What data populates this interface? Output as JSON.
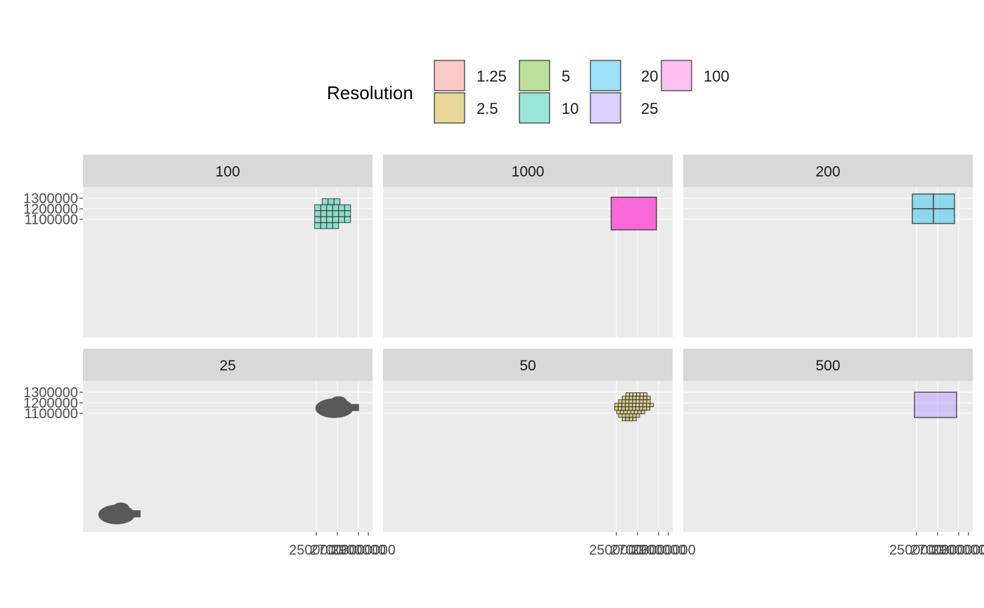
{
  "chart_data": {
    "type": "faceted-tile",
    "legend": {
      "title": "Resolution",
      "position": "top",
      "entries": [
        {
          "label": "1.25",
          "color": "#F8766D"
        },
        {
          "label": "2.5",
          "color": "#C49A00"
        },
        {
          "label": "5",
          "color": "#53B400"
        },
        {
          "label": "10",
          "color": "#00C094"
        },
        {
          "label": "20",
          "color": "#00B6EB"
        },
        {
          "label": "25",
          "color": "#A58AFF"
        },
        {
          "label": "100",
          "color": "#FB61D7"
        }
      ]
    },
    "x_axis": {
      "ticks": [
        2500000,
        2700000,
        2900000,
        3000000
      ],
      "tick_labels": [
        "2500000",
        "2700000",
        "2900000",
        "3000000"
      ]
    },
    "y_axis": {
      "ticks": [
        1100000,
        1200000,
        1300000
      ],
      "tick_labels": [
        "1100000",
        "1200000",
        "1300000"
      ]
    },
    "facets": [
      {
        "label": "100",
        "fill_resolution": "10",
        "extent": {
          "xmin": 2485000,
          "xmax": 2835000,
          "ymin": 1075000,
          "ymax": 1295000
        }
      },
      {
        "label": "1000",
        "fill_resolution": "100",
        "extent": {
          "xmin": 2450000,
          "xmax": 2880000,
          "ymin": 1000000,
          "ymax": 1310000
        }
      },
      {
        "label": "200",
        "fill_resolution": "20",
        "extent": {
          "xmin": 2460000,
          "xmax": 2860000,
          "ymin": 1060000,
          "ymax": 1340000
        }
      },
      {
        "label": "25",
        "fill_resolution": "",
        "extent": {
          "xmin": 2485000,
          "xmax": 2835000,
          "ymin": 1075000,
          "ymax": 1295000
        }
      },
      {
        "label": "50",
        "fill_resolution": "2.5",
        "extent": {
          "xmin": 2485000,
          "xmax": 2835000,
          "ymin": 1075000,
          "ymax": 1295000
        }
      },
      {
        "label": "500",
        "fill_resolution": "25",
        "extent": {
          "xmin": 2480000,
          "xmax": 2880000,
          "ymin": 1060000,
          "ymax": 1300000
        }
      }
    ]
  },
  "colors": {
    "panel_bg": "#EBEBEB",
    "strip_bg": "#D9D9D9",
    "grid": "#FFFFFF",
    "outline": "#333333",
    "blob": "#595959"
  }
}
